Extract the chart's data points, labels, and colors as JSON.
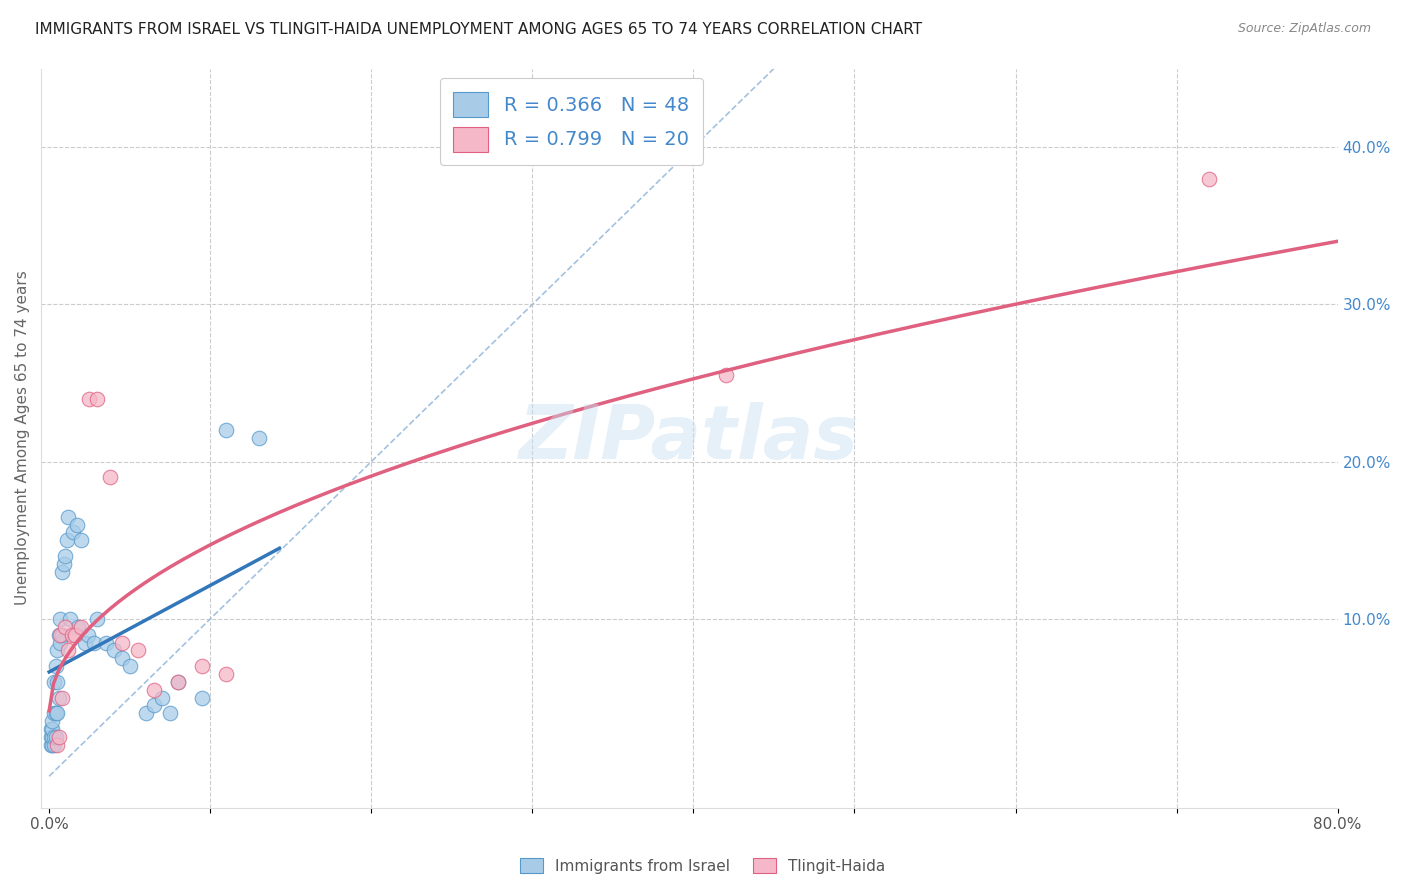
{
  "title": "IMMIGRANTS FROM ISRAEL VS TLINGIT-HAIDA UNEMPLOYMENT AMONG AGES 65 TO 74 YEARS CORRELATION CHART",
  "source": "Source: ZipAtlas.com",
  "ylabel": "Unemployment Among Ages 65 to 74 years",
  "watermark": "ZIPatlas",
  "blue_scatter_color": "#a8cce8",
  "pink_scatter_color": "#f4b8c8",
  "blue_edge_color": "#5599cc",
  "pink_edge_color": "#e06080",
  "line_blue": "#3377bb",
  "line_pink": "#e06080",
  "diag_color": "#99bbdd",
  "title_color": "#222222",
  "source_color": "#888888",
  "right_tick_color": "#4488cc",
  "israel_x": [
    0.001,
    0.001,
    0.001,
    0.002,
    0.002,
    0.002,
    0.002,
    0.003,
    0.003,
    0.003,
    0.003,
    0.004,
    0.004,
    0.004,
    0.005,
    0.005,
    0.005,
    0.006,
    0.006,
    0.007,
    0.007,
    0.008,
    0.008,
    0.009,
    0.01,
    0.011,
    0.012,
    0.013,
    0.015,
    0.017,
    0.018,
    0.02,
    0.022,
    0.024,
    0.028,
    0.03,
    0.035,
    0.04,
    0.045,
    0.05,
    0.06,
    0.065,
    0.07,
    0.075,
    0.08,
    0.095,
    0.11,
    0.13
  ],
  "israel_y": [
    0.02,
    0.025,
    0.03,
    0.02,
    0.025,
    0.03,
    0.035,
    0.02,
    0.025,
    0.04,
    0.06,
    0.025,
    0.04,
    0.07,
    0.04,
    0.06,
    0.08,
    0.05,
    0.09,
    0.085,
    0.1,
    0.09,
    0.13,
    0.135,
    0.14,
    0.15,
    0.165,
    0.1,
    0.155,
    0.16,
    0.095,
    0.15,
    0.085,
    0.09,
    0.085,
    0.1,
    0.085,
    0.08,
    0.075,
    0.07,
    0.04,
    0.045,
    0.05,
    0.04,
    0.06,
    0.05,
    0.22,
    0.215
  ],
  "tlingit_x": [
    0.005,
    0.006,
    0.007,
    0.008,
    0.01,
    0.012,
    0.014,
    0.016,
    0.02,
    0.025,
    0.03,
    0.038,
    0.045,
    0.055,
    0.065,
    0.08,
    0.095,
    0.11,
    0.42,
    0.72
  ],
  "tlingit_y": [
    0.02,
    0.025,
    0.09,
    0.05,
    0.095,
    0.08,
    0.09,
    0.09,
    0.095,
    0.24,
    0.24,
    0.19,
    0.085,
    0.08,
    0.055,
    0.06,
    0.07,
    0.065,
    0.255,
    0.38
  ],
  "xlim_min": -0.005,
  "xlim_max": 0.8,
  "ylim_min": -0.02,
  "ylim_max": 0.45,
  "xtick_positions": [
    0.0,
    0.1,
    0.2,
    0.3,
    0.4,
    0.5,
    0.6,
    0.7,
    0.8
  ],
  "xticklabels": [
    "0.0%",
    "",
    "",
    "",
    "",
    "",
    "",
    "",
    "80.0%"
  ],
  "ytick_positions": [
    0.0,
    0.1,
    0.2,
    0.3,
    0.4
  ],
  "yticklabels_right": [
    "",
    "10.0%",
    "20.0%",
    "30.0%",
    "40.0%"
  ],
  "legend_label1": "R = 0.366   N = 48",
  "legend_label2": "R = 0.799   N = 20",
  "bottom_legend1": "Immigrants from Israel",
  "bottom_legend2": "Tlingit-Haida"
}
